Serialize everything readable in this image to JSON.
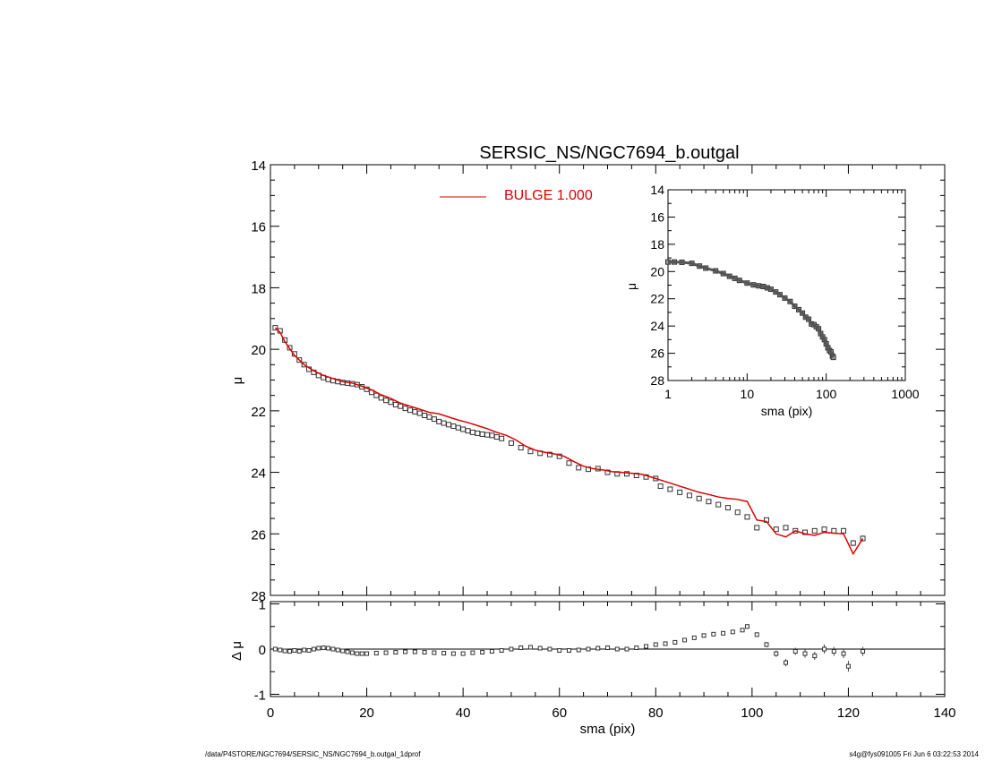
{
  "chart_data": [
    {
      "id": "main",
      "type": "line",
      "title": "SERSIC_NS/NGC7694_b.outgal",
      "xlabel": "",
      "ylabel": "μ",
      "xlim": [
        0,
        140
      ],
      "ylim": [
        28,
        14
      ],
      "x_ticks": [
        0,
        20,
        40,
        60,
        80,
        100,
        120,
        140
      ],
      "y_ticks": [
        14,
        16,
        18,
        20,
        22,
        24,
        26,
        28
      ],
      "legend": {
        "placement": "top-center",
        "entries": [
          {
            "label": "BULGE  1.000",
            "color": "#dd0000"
          }
        ]
      },
      "series": [
        {
          "name": "data",
          "style": "open-square",
          "color": "#000000",
          "x": [
            1,
            2,
            3,
            4,
            5,
            6,
            7,
            8,
            9,
            10,
            11,
            12,
            13,
            14,
            15,
            16,
            17,
            18,
            19,
            20,
            21,
            22,
            23,
            24,
            25,
            26,
            27,
            28,
            29,
            30,
            31,
            32,
            33,
            34,
            35,
            36,
            37,
            38,
            39,
            40,
            41,
            42,
            43,
            44,
            45,
            46,
            47,
            48,
            50,
            52,
            54,
            56,
            58,
            60,
            62,
            64,
            66,
            68,
            70,
            72,
            74,
            76,
            78,
            80,
            81,
            83,
            85,
            87,
            89,
            91,
            93,
            95,
            97,
            99,
            101,
            103,
            105,
            107,
            109,
            111,
            113,
            115,
            117,
            119,
            121,
            123
          ],
          "y": [
            19.3,
            19.4,
            19.7,
            19.95,
            20.15,
            20.35,
            20.5,
            20.65,
            20.75,
            20.85,
            20.92,
            20.98,
            21.02,
            21.05,
            21.08,
            21.1,
            21.12,
            21.15,
            21.22,
            21.3,
            21.4,
            21.5,
            21.58,
            21.66,
            21.72,
            21.8,
            21.85,
            21.92,
            21.98,
            22.03,
            22.08,
            22.15,
            22.2,
            22.27,
            22.35,
            22.4,
            22.45,
            22.5,
            22.55,
            22.6,
            22.65,
            22.7,
            22.73,
            22.76,
            22.78,
            22.8,
            22.85,
            22.9,
            23.05,
            23.2,
            23.32,
            23.38,
            23.42,
            23.48,
            23.7,
            23.85,
            23.9,
            23.88,
            24.0,
            24.05,
            24.05,
            24.1,
            24.15,
            24.2,
            24.45,
            24.55,
            24.65,
            24.75,
            24.85,
            24.95,
            25.05,
            25.15,
            25.3,
            25.45,
            25.8,
            25.55,
            25.85,
            25.8,
            25.9,
            25.95,
            25.9,
            25.85,
            25.9,
            25.9,
            26.3,
            26.15
          ],
          "err": [
            0.02,
            0.02,
            0.02,
            0.02,
            0.02,
            0.02,
            0.02,
            0.02,
            0.02,
            0.02,
            0.02,
            0.02,
            0.02,
            0.02,
            0.02,
            0.02,
            0.02,
            0.02,
            0.02,
            0.02,
            0.02,
            0.02,
            0.02,
            0.02,
            0.02,
            0.02,
            0.02,
            0.02,
            0.02,
            0.02,
            0.02,
            0.02,
            0.02,
            0.02,
            0.02,
            0.02,
            0.02,
            0.02,
            0.02,
            0.02,
            0.02,
            0.02,
            0.02,
            0.02,
            0.02,
            0.02,
            0.02,
            0.02,
            0.02,
            0.02,
            0.02,
            0.02,
            0.02,
            0.02,
            0.02,
            0.02,
            0.02,
            0.02,
            0.02,
            0.02,
            0.02,
            0.02,
            0.02,
            0.02,
            0.03,
            0.03,
            0.03,
            0.03,
            0.03,
            0.03,
            0.03,
            0.03,
            0.03,
            0.04,
            0.05,
            0.05,
            0.06,
            0.07,
            0.07,
            0.07,
            0.08,
            0.08,
            0.08,
            0.09,
            0.1,
            0.1
          ]
        },
        {
          "name": "BULGE  1.000",
          "style": "line",
          "color": "#dd0000",
          "x": [
            1,
            2,
            3,
            5,
            7,
            9,
            11,
            13,
            15,
            17,
            19,
            21,
            23,
            25,
            27,
            29,
            31,
            33,
            35,
            37,
            39,
            41,
            43,
            45,
            47,
            49,
            51,
            53,
            55,
            57,
            59,
            61,
            63,
            65,
            67,
            69,
            71,
            73,
            75,
            77,
            79,
            81,
            83,
            85,
            87,
            89,
            91,
            93,
            95,
            97,
            99,
            101,
            103,
            105,
            107,
            109,
            111,
            113,
            115,
            117,
            119,
            121,
            123
          ],
          "y": [
            19.3,
            19.45,
            19.75,
            20.2,
            20.5,
            20.7,
            20.85,
            20.95,
            21.05,
            21.1,
            21.2,
            21.32,
            21.48,
            21.6,
            21.75,
            21.85,
            21.95,
            22.05,
            22.1,
            22.2,
            22.3,
            22.38,
            22.48,
            22.58,
            22.7,
            22.8,
            22.95,
            23.15,
            23.28,
            23.35,
            23.4,
            23.48,
            23.65,
            23.8,
            23.88,
            23.92,
            23.98,
            24.0,
            24.03,
            24.06,
            24.15,
            24.25,
            24.35,
            24.45,
            24.55,
            24.65,
            24.72,
            24.8,
            24.85,
            24.88,
            24.95,
            25.55,
            25.6,
            26.0,
            26.1,
            25.9,
            26.0,
            26.05,
            25.95,
            25.98,
            26.0,
            26.65,
            26.15
          ]
        }
      ]
    },
    {
      "id": "residual",
      "type": "scatter",
      "xlabel": "sma (pix)",
      "ylabel": "Δ μ",
      "xlim": [
        0,
        140
      ],
      "ylim": [
        -1.05,
        1.05
      ],
      "x_ticks": [
        0,
        20,
        40,
        60,
        80,
        100,
        120,
        140
      ],
      "y_ticks": [
        -1,
        0,
        1
      ],
      "reference_line": 0,
      "series": [
        {
          "name": "residual",
          "style": "open-square-errorbar",
          "x": [
            1,
            2,
            3,
            4,
            5,
            6,
            7,
            8,
            9,
            10,
            11,
            12,
            13,
            14,
            15,
            16,
            17,
            18,
            19,
            20,
            22,
            24,
            26,
            28,
            30,
            32,
            34,
            36,
            38,
            40,
            42,
            44,
            46,
            48,
            50,
            52,
            54,
            56,
            58,
            60,
            62,
            64,
            66,
            68,
            70,
            72,
            74,
            76,
            78,
            80,
            82,
            84,
            86,
            88,
            90,
            92,
            94,
            96,
            98,
            99,
            101,
            103,
            105,
            107,
            109,
            111,
            113,
            115,
            117,
            119,
            120,
            123
          ],
          "y": [
            0.0,
            -0.02,
            -0.04,
            -0.05,
            -0.03,
            -0.05,
            -0.02,
            -0.03,
            0.0,
            0.02,
            0.03,
            0.02,
            0.0,
            -0.02,
            -0.04,
            -0.06,
            -0.08,
            -0.1,
            -0.1,
            -0.1,
            -0.09,
            -0.08,
            -0.07,
            -0.06,
            -0.06,
            -0.07,
            -0.08,
            -0.09,
            -0.1,
            -0.1,
            -0.08,
            -0.07,
            -0.05,
            -0.03,
            0.0,
            0.03,
            0.04,
            0.02,
            0.0,
            -0.03,
            -0.03,
            -0.02,
            0.0,
            0.02,
            0.03,
            0.0,
            0.0,
            0.03,
            0.06,
            0.1,
            0.12,
            0.15,
            0.2,
            0.25,
            0.3,
            0.33,
            0.35,
            0.38,
            0.42,
            0.5,
            0.32,
            0.1,
            -0.1,
            -0.3,
            -0.05,
            -0.1,
            -0.15,
            0.0,
            -0.05,
            -0.1,
            -0.38,
            -0.05
          ],
          "err": [
            0.02,
            0.02,
            0.02,
            0.02,
            0.02,
            0.02,
            0.02,
            0.02,
            0.02,
            0.02,
            0.02,
            0.02,
            0.02,
            0.02,
            0.02,
            0.02,
            0.02,
            0.02,
            0.02,
            0.02,
            0.02,
            0.02,
            0.02,
            0.02,
            0.02,
            0.02,
            0.02,
            0.02,
            0.02,
            0.02,
            0.02,
            0.02,
            0.02,
            0.02,
            0.02,
            0.02,
            0.02,
            0.02,
            0.02,
            0.02,
            0.02,
            0.02,
            0.02,
            0.02,
            0.02,
            0.02,
            0.02,
            0.03,
            0.03,
            0.03,
            0.03,
            0.03,
            0.03,
            0.03,
            0.03,
            0.03,
            0.03,
            0.04,
            0.04,
            0.05,
            0.05,
            0.06,
            0.07,
            0.08,
            0.08,
            0.09,
            0.09,
            0.1,
            0.1,
            0.1,
            0.12,
            0.1
          ]
        }
      ]
    },
    {
      "id": "inset",
      "type": "line",
      "xlabel": "sma (pix)",
      "ylabel": "μ",
      "xscale": "log",
      "xlim": [
        1,
        1000
      ],
      "ylim": [
        28,
        14
      ],
      "x_ticks": [
        1,
        10,
        100,
        1000
      ],
      "y_ticks": [
        14,
        16,
        18,
        20,
        22,
        24,
        26,
        28
      ],
      "series": [
        {
          "name": "data",
          "style": "open-square-dense",
          "x": [
            1,
            1.2,
            1.5,
            2,
            2.5,
            3,
            4,
            5,
            6,
            7,
            8,
            10,
            12,
            14,
            16,
            18,
            20,
            23,
            26,
            30,
            35,
            40,
            45,
            50,
            55,
            60,
            65,
            70,
            75,
            80,
            85,
            90,
            95,
            100,
            105,
            110,
            115,
            120,
            123
          ],
          "y": [
            19.3,
            19.3,
            19.32,
            19.4,
            19.6,
            19.75,
            19.95,
            20.15,
            20.35,
            20.5,
            20.65,
            20.85,
            20.98,
            21.05,
            21.1,
            21.2,
            21.3,
            21.5,
            21.7,
            21.95,
            22.2,
            22.55,
            22.8,
            23.05,
            23.35,
            23.5,
            23.85,
            23.9,
            24.05,
            24.2,
            24.55,
            24.8,
            25.0,
            25.3,
            25.6,
            25.8,
            25.9,
            26.2,
            26.3
          ]
        }
      ]
    }
  ],
  "footer": {
    "left": "/data/P4STORE/NGC7694/SERSIC_NS/NGC7694_b.outgal_1dprof",
    "right": "s4g@fys091005  Fri Jun  6 03:22:53 2014"
  }
}
